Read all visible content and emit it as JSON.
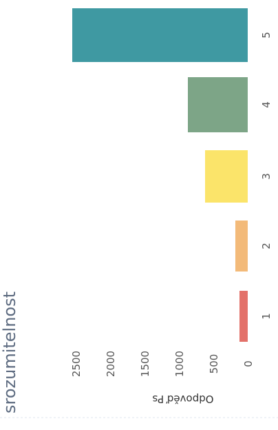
{
  "chart_data": {
    "type": "bar",
    "title": "srozumitelnost",
    "ylabel": "Odpověď Ps",
    "xlabel": "",
    "categories": [
      "1",
      "2",
      "3",
      "4",
      "5"
    ],
    "values": [
      120,
      180,
      620,
      870,
      2550
    ],
    "ylim": [
      0,
      2650
    ],
    "yticks": [
      0,
      500,
      1000,
      1500,
      2000,
      2500
    ],
    "colors": [
      "#e0625a",
      "#f2b26a",
      "#fbe15a",
      "#6f9b7a",
      "#2a8e98"
    ],
    "orientation": "rotated 90° clockwise (page viewed sideways)",
    "grid": false
  }
}
